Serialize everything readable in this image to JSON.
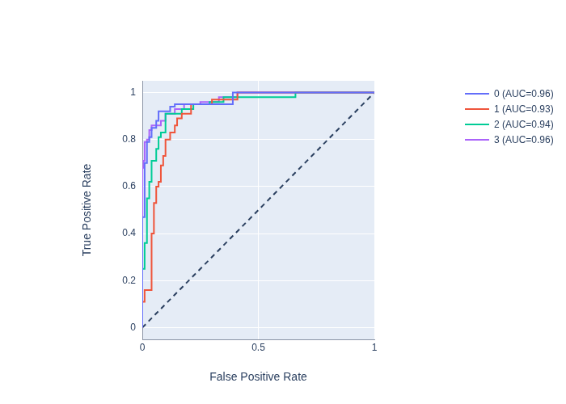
{
  "chart_data": {
    "type": "line",
    "x_label": "False Positive Rate",
    "y_label": "True Positive Rate",
    "xlim": [
      0,
      1
    ],
    "xticks": [
      0,
      0.5,
      1
    ],
    "ylim": [
      -0.05,
      1.05
    ],
    "yticks": [
      0,
      0.2,
      0.4,
      0.6,
      0.8,
      1
    ],
    "grid": true,
    "legend": "right",
    "series": [
      {
        "name": "0 (AUC=0.96)",
        "color": "#636efa",
        "line_style": "solid",
        "x": [
          0,
          0,
          0.01,
          0.01,
          0.02,
          0.02,
          0.03,
          0.03,
          0.04,
          0.04,
          0.06,
          0.06,
          0.07,
          0.07,
          0.12,
          0.12,
          0.14,
          0.14,
          0.39,
          0.39,
          1
        ],
        "values": [
          0,
          0.47,
          0.47,
          0.7,
          0.7,
          0.79,
          0.79,
          0.81,
          0.81,
          0.85,
          0.85,
          0.88,
          0.88,
          0.92,
          0.92,
          0.94,
          0.94,
          0.95,
          0.95,
          1,
          1
        ]
      },
      {
        "name": "1 (AUC=0.93)",
        "color": "#ef553b",
        "line_style": "solid",
        "x": [
          0,
          0,
          0.01,
          0.01,
          0.04,
          0.04,
          0.05,
          0.05,
          0.06,
          0.06,
          0.07,
          0.07,
          0.08,
          0.08,
          0.09,
          0.09,
          0.1,
          0.1,
          0.12,
          0.12,
          0.14,
          0.14,
          0.15,
          0.15,
          0.17,
          0.17,
          0.21,
          0.21,
          0.3,
          0.3,
          0.41,
          0.41,
          1
        ],
        "values": [
          0,
          0.11,
          0.11,
          0.16,
          0.16,
          0.4,
          0.4,
          0.53,
          0.53,
          0.6,
          0.6,
          0.62,
          0.62,
          0.69,
          0.69,
          0.73,
          0.73,
          0.8,
          0.8,
          0.83,
          0.83,
          0.86,
          0.86,
          0.89,
          0.89,
          0.91,
          0.91,
          0.95,
          0.95,
          0.97,
          0.97,
          1,
          1
        ]
      },
      {
        "name": "2 (AUC=0.94)",
        "color": "#00cc96",
        "line_style": "solid",
        "x": [
          0,
          0,
          0.01,
          0.01,
          0.02,
          0.02,
          0.03,
          0.03,
          0.04,
          0.04,
          0.06,
          0.06,
          0.07,
          0.07,
          0.08,
          0.08,
          0.1,
          0.1,
          0.17,
          0.17,
          0.22,
          0.22,
          0.29,
          0.29,
          0.35,
          0.35,
          0.66,
          0.66,
          1
        ],
        "values": [
          0,
          0.25,
          0.25,
          0.36,
          0.36,
          0.55,
          0.55,
          0.62,
          0.62,
          0.71,
          0.71,
          0.76,
          0.76,
          0.81,
          0.81,
          0.83,
          0.83,
          0.91,
          0.91,
          0.93,
          0.93,
          0.95,
          0.95,
          0.96,
          0.96,
          0.98,
          0.98,
          1,
          1
        ]
      },
      {
        "name": "3 (AUC=0.96)",
        "color": "#ab63fa",
        "line_style": "solid",
        "x": [
          0,
          0,
          0.005,
          0.005,
          0.01,
          0.01,
          0.02,
          0.02,
          0.03,
          0.03,
          0.04,
          0.04,
          0.08,
          0.08,
          0.1,
          0.1,
          0.14,
          0.14,
          0.18,
          0.18,
          0.25,
          0.25,
          0.33,
          0.33,
          0.41,
          0.41,
          1
        ],
        "values": [
          0,
          0.68,
          0.68,
          0.71,
          0.71,
          0.79,
          0.79,
          0.8,
          0.8,
          0.84,
          0.84,
          0.86,
          0.86,
          0.88,
          0.88,
          0.91,
          0.91,
          0.93,
          0.93,
          0.95,
          0.95,
          0.96,
          0.96,
          0.98,
          0.98,
          1,
          1
        ]
      },
      {
        "color": "#2a3f5f",
        "line_style": "dashed",
        "x": [
          0,
          1
        ],
        "values": [
          0,
          1
        ]
      }
    ]
  }
}
